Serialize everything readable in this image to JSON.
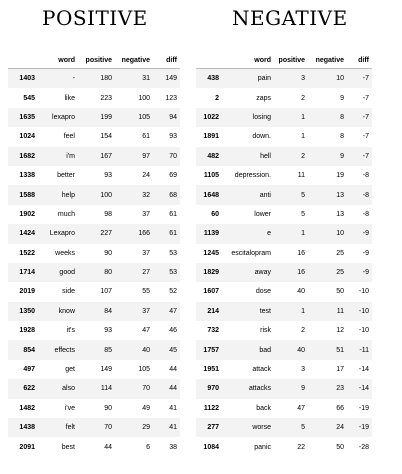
{
  "positive": {
    "title": "POSITIVE",
    "columns": [
      "",
      "word",
      "positive",
      "negative",
      "diff"
    ],
    "rows": [
      [
        "1403",
        "-",
        "180",
        "31",
        "149"
      ],
      [
        "545",
        "like",
        "223",
        "100",
        "123"
      ],
      [
        "1635",
        "lexapro",
        "199",
        "105",
        "94"
      ],
      [
        "1024",
        "feel",
        "154",
        "61",
        "93"
      ],
      [
        "1682",
        "i'm",
        "167",
        "97",
        "70"
      ],
      [
        "1338",
        "better",
        "93",
        "24",
        "69"
      ],
      [
        "1588",
        "help",
        "100",
        "32",
        "68"
      ],
      [
        "1902",
        "much",
        "98",
        "37",
        "61"
      ],
      [
        "1424",
        "Lexapro",
        "227",
        "166",
        "61"
      ],
      [
        "1522",
        "weeks",
        "90",
        "37",
        "53"
      ],
      [
        "1714",
        "good",
        "80",
        "27",
        "53"
      ],
      [
        "2019",
        "side",
        "107",
        "55",
        "52"
      ],
      [
        "1350",
        "know",
        "84",
        "37",
        "47"
      ],
      [
        "1928",
        "it's",
        "93",
        "47",
        "46"
      ],
      [
        "854",
        "effects",
        "85",
        "40",
        "45"
      ],
      [
        "497",
        "get",
        "149",
        "105",
        "44"
      ],
      [
        "622",
        "also",
        "114",
        "70",
        "44"
      ],
      [
        "1482",
        "i've",
        "90",
        "49",
        "41"
      ],
      [
        "1438",
        "felt",
        "70",
        "29",
        "41"
      ],
      [
        "2091",
        "best",
        "44",
        "6",
        "38"
      ]
    ]
  },
  "negative": {
    "title": "NEGATIVE",
    "columns": [
      "",
      "word",
      "positive",
      "negative",
      "diff"
    ],
    "rows": [
      [
        "438",
        "pain",
        "3",
        "10",
        "-7"
      ],
      [
        "2",
        "zaps",
        "2",
        "9",
        "-7"
      ],
      [
        "1022",
        "losing",
        "1",
        "8",
        "-7"
      ],
      [
        "1891",
        "down.",
        "1",
        "8",
        "-7"
      ],
      [
        "482",
        "hell",
        "2",
        "9",
        "-7"
      ],
      [
        "1105",
        "depression.",
        "11",
        "19",
        "-8"
      ],
      [
        "1648",
        "anti",
        "5",
        "13",
        "-8"
      ],
      [
        "60",
        "lower",
        "5",
        "13",
        "-8"
      ],
      [
        "1139",
        "e",
        "1",
        "10",
        "-9"
      ],
      [
        "1245",
        "escitalopram",
        "16",
        "25",
        "-9"
      ],
      [
        "1829",
        "away",
        "16",
        "25",
        "-9"
      ],
      [
        "1607",
        "dose",
        "40",
        "50",
        "-10"
      ],
      [
        "214",
        "test",
        "1",
        "11",
        "-10"
      ],
      [
        "732",
        "risk",
        "2",
        "12",
        "-10"
      ],
      [
        "1757",
        "bad",
        "40",
        "51",
        "-11"
      ],
      [
        "1951",
        "attack",
        "3",
        "17",
        "-14"
      ],
      [
        "970",
        "attacks",
        "9",
        "23",
        "-14"
      ],
      [
        "1122",
        "back",
        "47",
        "66",
        "-19"
      ],
      [
        "277",
        "worse",
        "5",
        "24",
        "-19"
      ],
      [
        "1084",
        "panic",
        "22",
        "50",
        "-28"
      ]
    ]
  }
}
